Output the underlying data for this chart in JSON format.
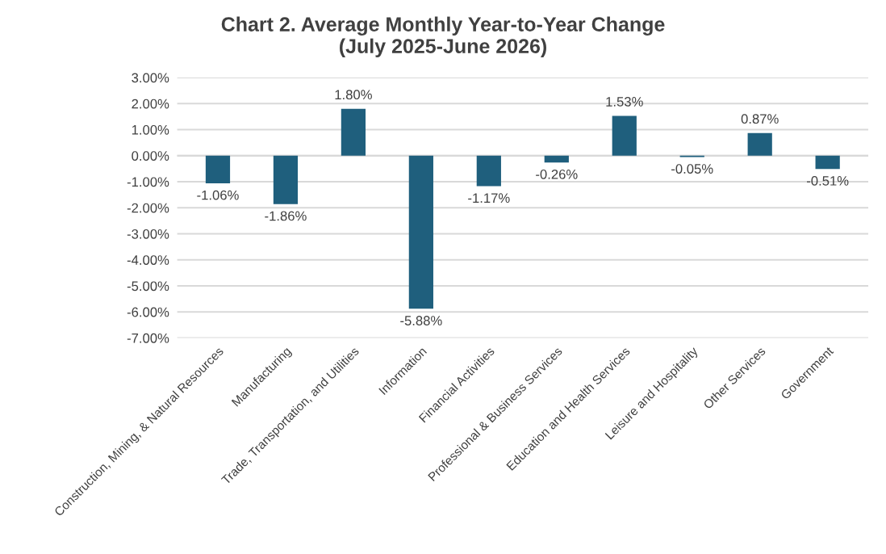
{
  "chart_data": {
    "type": "bar",
    "title": "Chart 2. Average Monthly Year-to-Year Change\n(July 2025-June 2026)",
    "categories": [
      "Construction, Mining, & Natural Resources",
      "Manufacturing",
      "Trade, Transportation, and Utilities",
      "Information",
      "Financial Activities",
      "Professional & Business Services",
      "Education and Health Services",
      "Leisure and Hospitality",
      "Other Services",
      "Government"
    ],
    "values": [
      -1.06,
      -1.86,
      1.8,
      -5.88,
      -1.17,
      -0.26,
      1.53,
      -0.05,
      0.87,
      -0.51
    ],
    "value_labels": [
      "-1.06%",
      "-1.86%",
      "1.80%",
      "-5.88%",
      "-1.17%",
      "-0.26%",
      "1.53%",
      "-0.05%",
      "0.87%",
      "-0.51%"
    ],
    "color": "#1f5f7d",
    "ylim": [
      -7,
      3
    ],
    "yticks": [
      {
        "value": 3,
        "label": "3.00%"
      },
      {
        "value": 2,
        "label": "2.00%"
      },
      {
        "value": 1,
        "label": "1.00%"
      },
      {
        "value": 0,
        "label": "0.00%"
      },
      {
        "value": -1,
        "label": "-1.00%"
      },
      {
        "value": -2,
        "label": "-2.00%"
      },
      {
        "value": -3,
        "label": "-3.00%"
      },
      {
        "value": -4,
        "label": "-4.00%"
      },
      {
        "value": -5,
        "label": "-5.00%"
      },
      {
        "value": -6,
        "label": "-6.00%"
      },
      {
        "value": -7,
        "label": "-7.00%"
      }
    ],
    "grid": "y",
    "legend": false
  }
}
